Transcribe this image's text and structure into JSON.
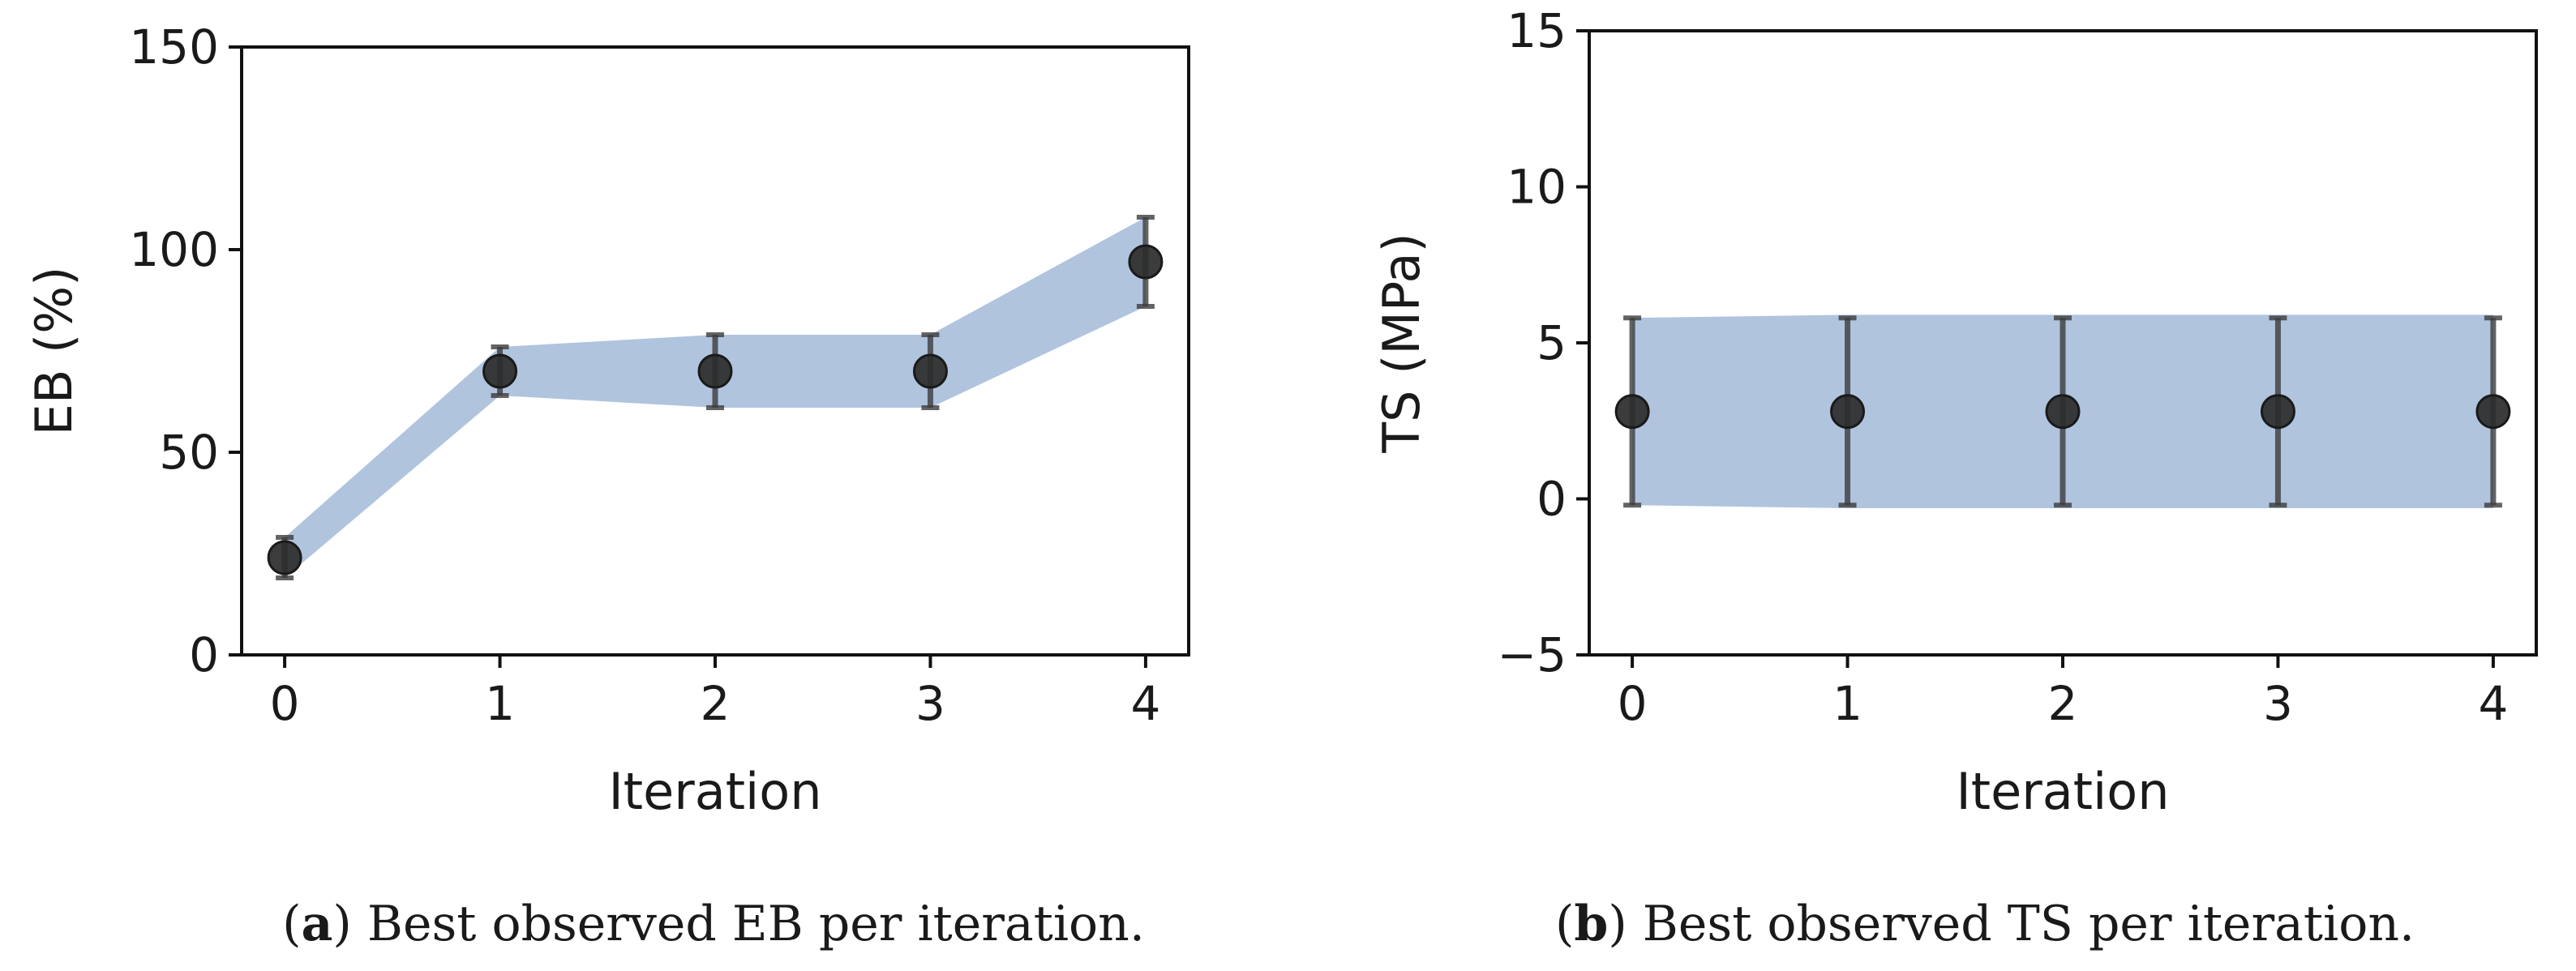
{
  "chart_data": [
    {
      "type": "line",
      "panel": "a",
      "caption_letter": "a",
      "caption_text": "Best observed EB per iteration.",
      "xlabel": "Iteration",
      "ylabel": "EB (%)",
      "x": [
        0,
        1,
        2,
        3,
        4
      ],
      "xlim": [
        -0.2,
        4.2
      ],
      "ylim": [
        0,
        150
      ],
      "xticks": [
        0,
        1,
        2,
        3,
        4
      ],
      "yticks": [
        0,
        50,
        100,
        150
      ],
      "series": [
        {
          "name": "Best observed EB",
          "values": [
            24,
            70,
            70,
            70,
            97
          ],
          "band_lower": [
            19,
            64,
            61,
            61,
            86
          ],
          "band_upper": [
            29,
            76,
            79,
            79,
            108
          ],
          "err_lower": [
            19,
            64,
            61,
            61,
            86
          ],
          "err_upper": [
            29,
            76,
            79,
            79,
            108
          ]
        }
      ],
      "band_color": "#b0c4de",
      "marker_color": "#2b2b2b",
      "grid": false
    },
    {
      "type": "line",
      "panel": "b",
      "caption_letter": "b",
      "caption_text": "Best observed TS per iteration.",
      "xlabel": "Iteration",
      "ylabel": "TS (MPa)",
      "x": [
        0,
        1,
        2,
        3,
        4
      ],
      "xlim": [
        -0.2,
        4.2
      ],
      "ylim": [
        -5,
        15
      ],
      "xticks": [
        0,
        1,
        2,
        3,
        4
      ],
      "yticks": [
        -5,
        0,
        5,
        10,
        15
      ],
      "series": [
        {
          "name": "Best observed TS",
          "values": [
            2.8,
            2.8,
            2.8,
            2.8,
            2.8
          ],
          "band_lower": [
            -0.2,
            -0.3,
            -0.3,
            -0.3,
            -0.3
          ],
          "band_upper": [
            5.8,
            5.9,
            5.9,
            5.9,
            5.9
          ],
          "err_lower": [
            -0.2,
            -0.2,
            -0.2,
            -0.2,
            -0.2
          ],
          "err_upper": [
            5.8,
            5.8,
            5.8,
            5.8,
            5.8
          ]
        }
      ],
      "band_color": "#b0c4de",
      "marker_color": "#2b2b2b",
      "grid": false
    }
  ]
}
